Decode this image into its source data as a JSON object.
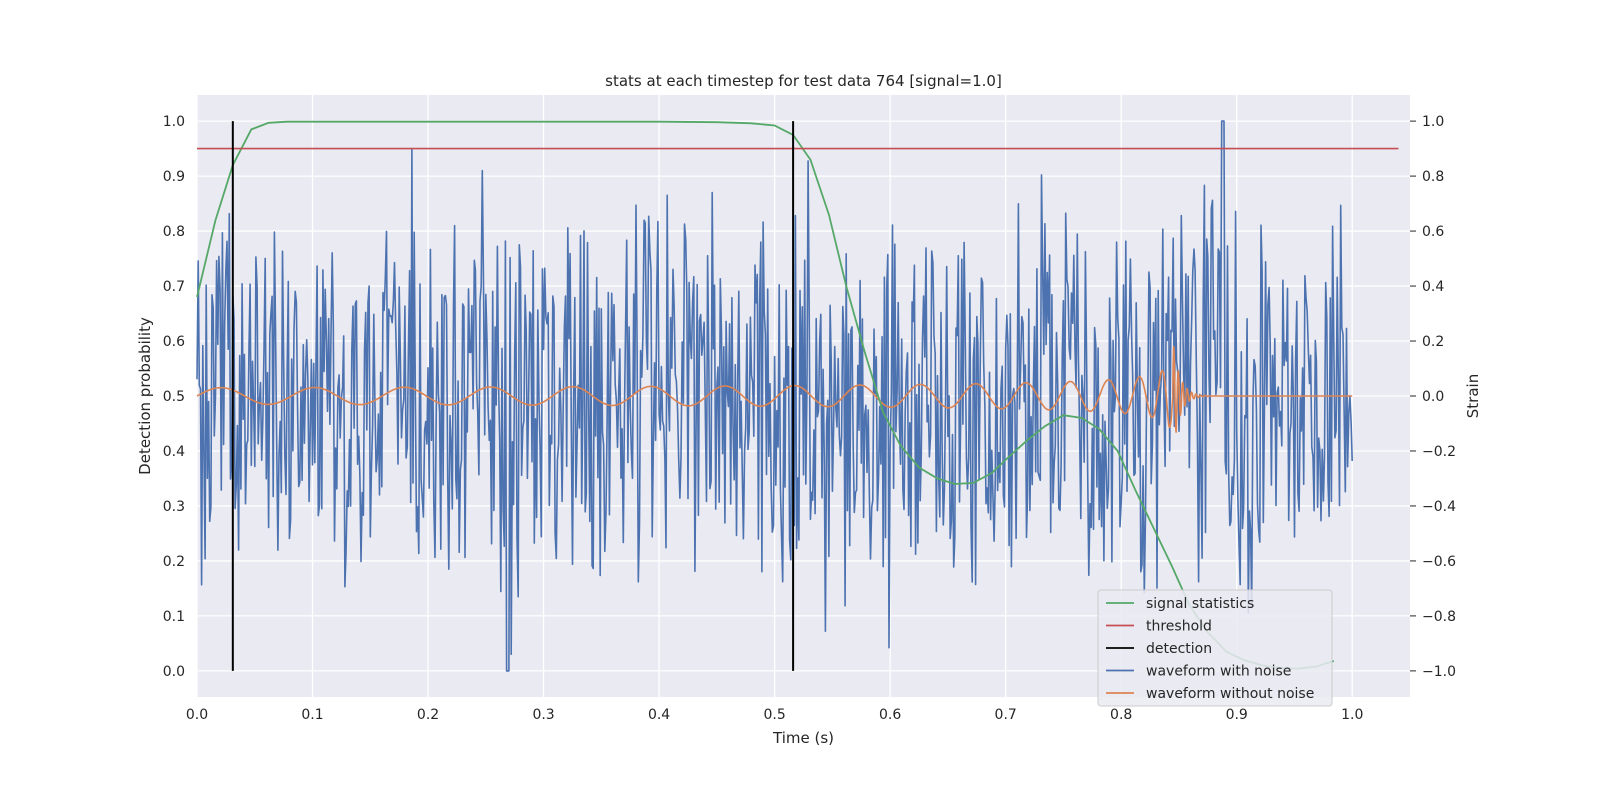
{
  "chart_data": {
    "type": "line",
    "title": "stats at each timestep for test data 764 [signal=1.0]",
    "xlabel": "Time (s)",
    "ylabel_left": "Detection probability",
    "ylabel_right": "Strain",
    "xlim": [
      0.0,
      1.05
    ],
    "ylim_left": [
      -0.0475,
      1.0475
    ],
    "ylim_right": [
      -1.095,
      1.095
    ],
    "x_ticks": [
      "0.0",
      "0.1",
      "0.2",
      "0.3",
      "0.4",
      "0.5",
      "0.6",
      "0.7",
      "0.8",
      "0.9",
      "1.0"
    ],
    "y_ticks_left": [
      "0.0",
      "0.1",
      "0.2",
      "0.3",
      "0.4",
      "0.5",
      "0.6",
      "0.7",
      "0.8",
      "0.9",
      "1.0"
    ],
    "y_ticks_right": [
      "−1.0",
      "−0.8",
      "−0.6",
      "−0.4",
      "−0.2",
      "0.0",
      "0.2",
      "0.4",
      "0.6",
      "0.8",
      "1.0"
    ],
    "grid": true,
    "legend_position": "lower-right",
    "colors": {
      "signal_statistics": "#55a868",
      "threshold": "#c44e52",
      "detection": "#000000",
      "waveform_with_noise": "#4c72b0",
      "waveform_without_noise": "#dd8452",
      "plot_background": "#eaeaf2",
      "grid": "#ffffff"
    },
    "series": [
      {
        "name": "signal statistics",
        "axis": "left",
        "x": [
          0.0,
          0.016,
          0.031,
          0.047,
          0.062,
          0.078,
          0.1,
          0.2,
          0.3,
          0.4,
          0.45,
          0.48,
          0.5,
          0.516,
          0.531,
          0.547,
          0.562,
          0.578,
          0.594,
          0.609,
          0.625,
          0.641,
          0.656,
          0.672,
          0.688,
          0.703,
          0.719,
          0.734,
          0.75,
          0.766,
          0.781,
          0.797,
          0.812,
          0.828,
          0.844,
          0.859,
          0.875,
          0.891,
          0.906,
          0.922,
          0.938,
          0.953,
          0.969,
          0.984
        ],
        "values": [
          0.68,
          0.82,
          0.92,
          0.985,
          0.997,
          0.999,
          0.999,
          0.999,
          0.999,
          0.999,
          0.998,
          0.996,
          0.992,
          0.975,
          0.93,
          0.83,
          0.7,
          0.58,
          0.47,
          0.41,
          0.37,
          0.35,
          0.34,
          0.342,
          0.36,
          0.39,
          0.42,
          0.445,
          0.465,
          0.46,
          0.44,
          0.4,
          0.33,
          0.26,
          0.19,
          0.12,
          0.07,
          0.035,
          0.02,
          0.01,
          0.005,
          0.004,
          0.008,
          0.018
        ]
      },
      {
        "name": "threshold",
        "axis": "left",
        "x": [
          0.0,
          1.04
        ],
        "values": [
          0.95,
          0.95
        ]
      },
      {
        "name": "detection",
        "axis": "left",
        "type": "vlines",
        "x": [
          0.031,
          0.516
        ],
        "ymin": 0.0,
        "ymax": 1.0
      },
      {
        "name": "waveform with noise",
        "axis": "right",
        "x_start": 0.0,
        "x_end": 1.0,
        "description_note": "noisy strain samples, roughly uniform noise within ±0.7 with occasional spikes",
        "values": []
      },
      {
        "name": "waveform without noise",
        "axis": "right",
        "x_start": 0.0,
        "x_end": 1.0,
        "description_note": "chirp: amplitude ~0.03 growing to ~0.2 near 0.84 s, then ringdown to 0 after 0.86 s",
        "values": []
      }
    ],
    "legend": [
      "signal statistics",
      "threshold",
      "detection",
      "waveform with noise",
      "waveform without noise"
    ]
  }
}
